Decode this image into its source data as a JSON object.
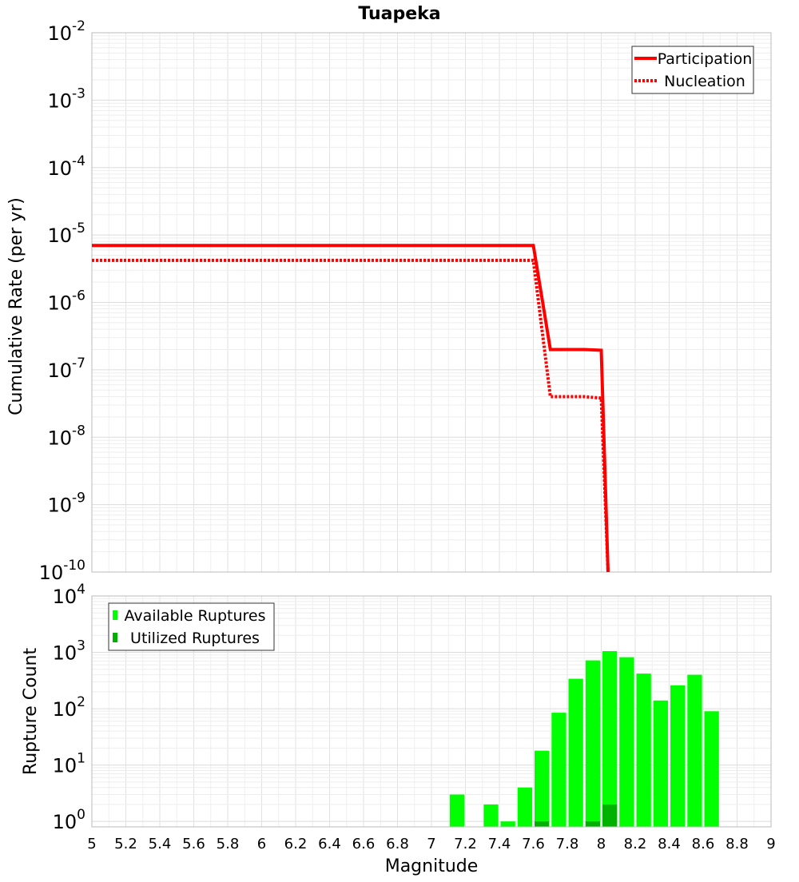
{
  "chart_data": [
    {
      "type": "line",
      "title": "Tuapeka",
      "xlabel": "",
      "ylabel": "Cumulative Rate (per yr)",
      "yscale": "log",
      "xlim": [
        5,
        9
      ],
      "ylim": [
        1e-10,
        0.01
      ],
      "y_tick_exponents": [
        "-10",
        "-9",
        "-8",
        "-7",
        "-6",
        "-5",
        "-4",
        "-3",
        "-2"
      ],
      "legend_position": "top-right",
      "series": [
        {
          "name": "Participation",
          "color": "#ff0000",
          "style": "solid",
          "x": [
            5.0,
            7.6,
            7.65,
            7.7,
            7.9,
            8.0,
            8.04
          ],
          "y": [
            7e-06,
            7e-06,
            1.2e-06,
            2e-07,
            2e-07,
            1.95e-07,
            1e-10
          ]
        },
        {
          "name": "Nucleation",
          "color": "#ff0000",
          "style": "dotted",
          "x": [
            5.0,
            7.6,
            7.7,
            7.9,
            8.0,
            8.04
          ],
          "y": [
            4.2e-06,
            4.2e-06,
            4e-08,
            4e-08,
            3.8e-08,
            1e-10
          ]
        }
      ]
    },
    {
      "type": "bar",
      "title": "",
      "xlabel": "Magnitude",
      "ylabel": "Rupture Count",
      "yscale": "log",
      "xlim": [
        5,
        9
      ],
      "ylim": [
        0.8,
        10000
      ],
      "y_tick_exponents": [
        "0",
        "1",
        "2",
        "3",
        "4"
      ],
      "x_ticks": [
        "5",
        "5.2",
        "5.4",
        "5.6",
        "5.8",
        "6",
        "6.2",
        "6.4",
        "6.6",
        "6.8",
        "7",
        "7.2",
        "7.4",
        "7.6",
        "7.8",
        "8",
        "8.2",
        "8.4",
        "8.6",
        "8.8",
        "9"
      ],
      "legend_position": "top-left",
      "bin_width": 0.1,
      "series": [
        {
          "name": "Available Ruptures",
          "color": "#00ff00",
          "x": [
            7.15,
            7.35,
            7.45,
            7.55,
            7.65,
            7.75,
            7.85,
            7.95,
            8.05,
            8.15,
            8.25,
            8.35,
            8.45,
            8.55,
            8.65
          ],
          "values": [
            3,
            2,
            1,
            4,
            18,
            85,
            340,
            720,
            1050,
            820,
            420,
            140,
            260,
            400,
            90
          ]
        },
        {
          "name": "Utilized Ruptures",
          "color": "#00b200",
          "x": [
            7.65,
            7.95,
            8.05
          ],
          "values": [
            1,
            1,
            2
          ]
        }
      ]
    }
  ]
}
